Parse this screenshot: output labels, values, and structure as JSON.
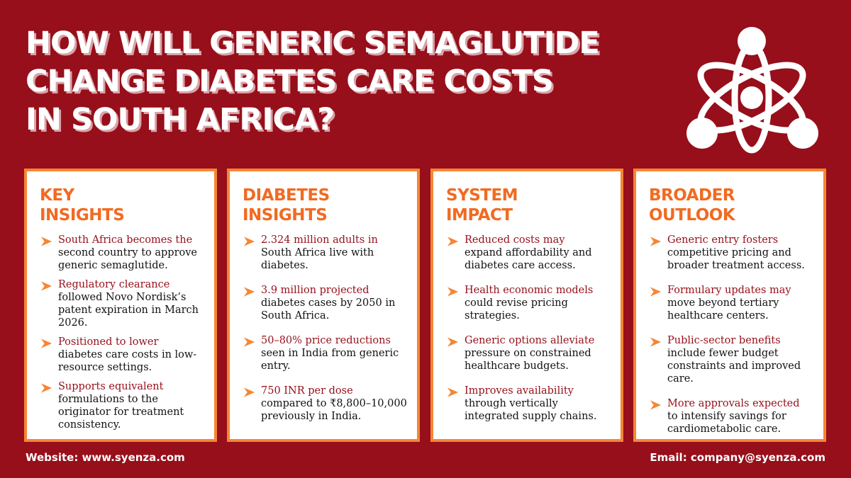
{
  "title": {
    "line1": "HOW WILL GENERIC SEMAGLUTIDE",
    "line2": "CHANGE DIABETES CARE COSTS",
    "line3": "IN SOUTH AFRICA?"
  },
  "logo": {
    "icon": "atom-people-icon",
    "color": "#ffffff"
  },
  "colors": {
    "background": "#960f1a",
    "accent": "#f58634",
    "heading": "#f26a21",
    "highlight": "#960f1a"
  },
  "cards": [
    {
      "title_line1": "KEY",
      "title_line2": "INSIGHTS",
      "items": [
        {
          "highlight": "South Africa becomes the",
          "text": "second country to approve generic semaglutide."
        },
        {
          "highlight": "Regulatory clearance",
          "text": "followed Novo Nordisk’s patent expiration in March 2026."
        },
        {
          "highlight": "Positioned to lower",
          "text": "diabetes care costs in low-resource settings."
        },
        {
          "highlight": "Supports equivalent",
          "text": "formulations to the originator for treatment consistency."
        }
      ]
    },
    {
      "title_line1": "DIABETES",
      "title_line2": "INSIGHTS",
      "items": [
        {
          "highlight": "2.324 million adults in",
          "text": "South Africa live with diabetes."
        },
        {
          "highlight": "3.9 million projected",
          "text": "diabetes cases by 2050 in South Africa."
        },
        {
          "highlight": "50–80% price reductions",
          "text": "seen in India from generic entry."
        },
        {
          "highlight": "750 INR per dose",
          "text": "compared to ₹8,800–10,000 previously in India."
        }
      ]
    },
    {
      "title_line1": "SYSTEM",
      "title_line2": "IMPACT",
      "items": [
        {
          "highlight": "Reduced costs may",
          "text": "expand affordability and diabetes care access."
        },
        {
          "highlight": "Health economic models",
          "text": "could revise pricing strategies."
        },
        {
          "highlight": "Generic options alleviate",
          "text": "pressure on constrained healthcare budgets."
        },
        {
          "highlight": "Improves availability",
          "text": "through vertically integrated supply chains."
        }
      ]
    },
    {
      "title_line1": "BROADER",
      "title_line2": "OUTLOOK",
      "items": [
        {
          "highlight": "Generic entry fosters",
          "text": "competitive pricing and broader treatment access."
        },
        {
          "highlight": "Formulary updates may",
          "text": "move beyond tertiary healthcare centers."
        },
        {
          "highlight": "Public-sector benefits",
          "text": "include fewer budget constraints and improved care."
        },
        {
          "highlight": "More approvals expected",
          "text": "to intensify savings for cardiometabolic care."
        }
      ]
    }
  ],
  "footer": {
    "website": "Website: www.syenza.com",
    "email": "Email: company@syenza.com"
  }
}
